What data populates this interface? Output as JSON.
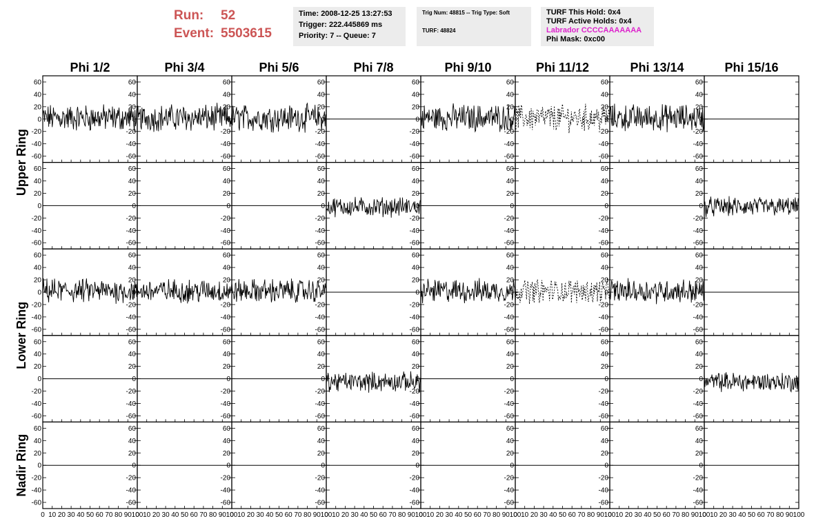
{
  "header": {
    "run_label": "Run:",
    "run_value": "52",
    "event_label": "Event:",
    "event_value": "5503615",
    "time": "Time: 2008-12-25 13:27:53",
    "trigger": "Trigger: 222.445869 ms",
    "priority": "Priority: 7 -- Queue: 7",
    "trig_num": "Trig Num: 48815 -- Trig Type: Soft",
    "turf": "TURF: 48824",
    "turf_this_hold": "TURF This Hold: 0x4",
    "turf_active_holds": "TURF Active Holds: 0x4",
    "labrador": "Labrador CCCCAAAAAAA",
    "phi_mask": "Phi Mask: 0xc00",
    "labrador_color": "#dd22cc",
    "run_color": "#cc5555"
  },
  "chart_data": {
    "type": "line",
    "columns": [
      "Phi 1/2",
      "Phi 3/4",
      "Phi 5/6",
      "Phi 7/8",
      "Phi 9/10",
      "Phi 11/12",
      "Phi 13/14",
      "Phi 15/16"
    ],
    "ring_labels": [
      "Upper Ring",
      "Lower Ring",
      "Nadir Ring"
    ],
    "ylim": [
      -70,
      70
    ],
    "yticks": [
      -60,
      -40,
      -20,
      0,
      20,
      40,
      60
    ],
    "xlim": [
      0,
      100
    ],
    "xticks": [
      0,
      10,
      20,
      30,
      40,
      50,
      60,
      70,
      80,
      90,
      100
    ],
    "rows": [
      {
        "active": [
          1,
          1,
          1,
          0,
          1,
          1,
          1,
          0
        ],
        "dashed": [
          0,
          0,
          0,
          0,
          0,
          1,
          0,
          0
        ],
        "amplitude": 18,
        "offset": 2
      },
      {
        "active": [
          0,
          0,
          0,
          1,
          0,
          0,
          0,
          1
        ],
        "dashed": [
          0,
          0,
          0,
          0,
          0,
          0,
          0,
          0
        ],
        "amplitude": 13,
        "offset": -2
      },
      {
        "active": [
          1,
          1,
          1,
          0,
          1,
          1,
          1,
          0
        ],
        "dashed": [
          0,
          0,
          0,
          0,
          0,
          1,
          0,
          0
        ],
        "amplitude": 16,
        "offset": 2
      },
      {
        "active": [
          0,
          0,
          0,
          1,
          0,
          0,
          0,
          1
        ],
        "dashed": [
          0,
          0,
          0,
          0,
          0,
          0,
          0,
          0
        ],
        "amplitude": 13,
        "offset": -5
      },
      {
        "active": [
          0,
          0,
          0,
          0,
          0,
          0,
          0,
          0
        ],
        "dashed": [
          0,
          0,
          0,
          0,
          0,
          0,
          0,
          0
        ],
        "amplitude": 0,
        "offset": 0
      }
    ]
  }
}
